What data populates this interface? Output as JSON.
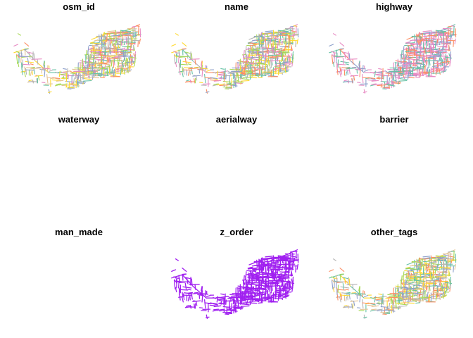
{
  "chart_data": {
    "type": "small-multiples-map",
    "layout": "3x3 grid",
    "panels": [
      {
        "title": "osm_id",
        "coloring": "categorical",
        "palette": [
          "#e78ac3",
          "#a6d854",
          "#fc8d62",
          "#8da0cb",
          "#ffd92f",
          "#66c2a5",
          "#e5c494",
          "#b3b3b3"
        ],
        "empty": false
      },
      {
        "title": "name",
        "coloring": "categorical",
        "palette": [
          "#a6d854",
          "#fc8d62",
          "#8da0cb",
          "#e78ac3",
          "#ffd92f",
          "#66c2a5",
          "#b3b3b3"
        ],
        "empty": false
      },
      {
        "title": "highway",
        "coloring": "categorical",
        "palette": [
          "#e78ac3",
          "#8da0cb",
          "#fc8d62",
          "#66c2a5",
          "#e78ac3"
        ],
        "empty": false
      },
      {
        "title": "waterway",
        "empty": true
      },
      {
        "title": "aerialway",
        "empty": true
      },
      {
        "title": "barrier",
        "empty": true
      },
      {
        "title": "man_made",
        "empty": true
      },
      {
        "title": "z_order",
        "coloring": "single",
        "palette": [
          "#a020f0"
        ],
        "empty": false
      },
      {
        "title": "other_tags",
        "coloring": "categorical",
        "palette": [
          "#b3b3b3",
          "#a6d854",
          "#ffd92f",
          "#e5c494",
          "#8da0cb",
          "#fc8d62",
          "#66c2a5"
        ],
        "empty": false
      }
    ]
  }
}
